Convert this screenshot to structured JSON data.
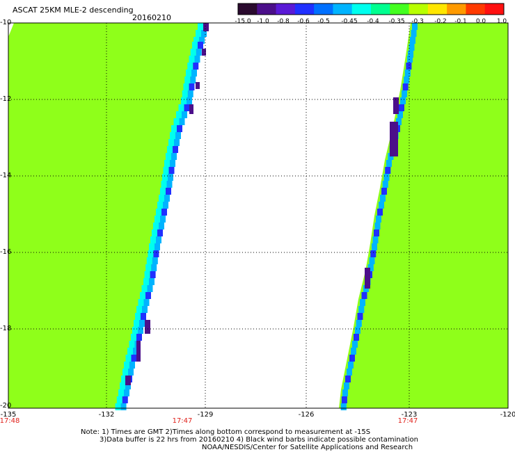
{
  "header": {
    "title": "ASCAT 25KM MLE-2 descending",
    "date": "20160210"
  },
  "colorbar": {
    "labels": [
      "-15.0",
      "-1.0",
      "-0.8",
      "-0.6",
      "-0.5",
      "-0.45",
      "-0.4",
      "-0.35",
      "-0.3",
      "-0.2",
      "-0.1",
      "0.0",
      "1.0"
    ],
    "colors": [
      "#2a0a2e",
      "#4b0f8a",
      "#5a1ad6",
      "#2030ff",
      "#0070ff",
      "#00b4ff",
      "#00ffee",
      "#00ff90",
      "#44ff20",
      "#b8ff00",
      "#ffe600",
      "#ff9a00",
      "#ff3a00",
      "#ff1010"
    ]
  },
  "axes": {
    "lat_labels": [
      "-10",
      "-12",
      "-14",
      "-16",
      "-18",
      "-20"
    ],
    "lon_labels": [
      "-135",
      "-132",
      "-129",
      "-126",
      "-123",
      "-120"
    ],
    "time_labels": [
      "17:48",
      "17:47",
      "17:47"
    ]
  },
  "map": {
    "lon_range": [
      -135,
      -120
    ],
    "lat_range": [
      -10,
      -20
    ],
    "swath_fill_color": "#8fff1a",
    "swath_edge_colors": [
      "#00ffee",
      "#00b4ff",
      "#2030ff",
      "#4b0f8a"
    ]
  },
  "notes": {
    "line1": "Note: 1) Times are GMT 2)Times along bottom correspond to measurement at -15S",
    "line2": "3)Data buffer is 22 hrs from 20160210 4) Black wind barbs indicate possible contamination",
    "line3": "NOAA/NESDIS/Center for Satellite Applications and Research"
  }
}
